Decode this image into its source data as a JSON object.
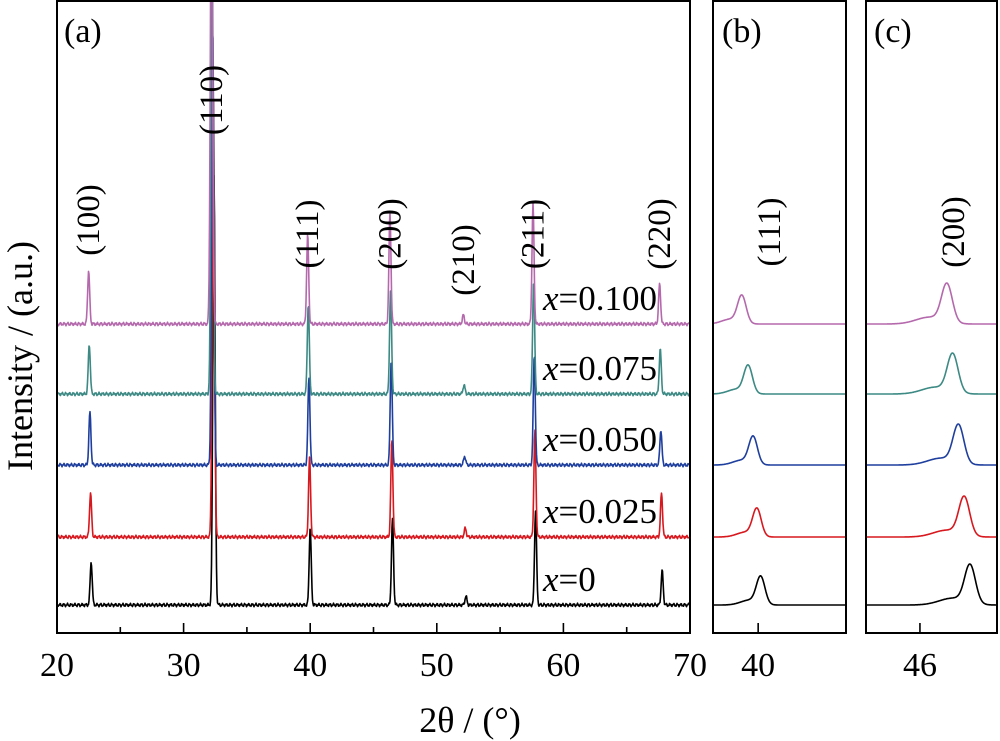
{
  "chart_data": [
    {
      "type": "line",
      "panel": "(a)",
      "xlabel": "2θ / (°)",
      "ylabel": "Intensity / (a.u.)",
      "xlim": [
        20,
        70
      ],
      "xticks": [
        "20",
        "30",
        "40",
        "50",
        "60",
        "70"
      ],
      "peaks": [
        {
          "hkl": "(100)",
          "x": 22.7,
          "heights": [
            10,
            10,
            12,
            11,
            12
          ]
        },
        {
          "hkl": "(110)",
          "x": 32.4,
          "heights": [
            100,
            100,
            100,
            100,
            100
          ]
        },
        {
          "hkl": "(111)",
          "x": 40.0,
          "heights": [
            18,
            18,
            20,
            20,
            20
          ]
        },
        {
          "hkl": "(200)",
          "x": 46.5,
          "heights": [
            20,
            22,
            24,
            23,
            25
          ]
        },
        {
          "hkl": "(210)",
          "x": 52.3,
          "heights": [
            2,
            2,
            2,
            2,
            2
          ]
        },
        {
          "hkl": "(211)",
          "x": 57.8,
          "heights": [
            22,
            24,
            25,
            25,
            27
          ]
        },
        {
          "hkl": "(220)",
          "x": 67.8,
          "heights": [
            8,
            10,
            8,
            10,
            9
          ]
        }
      ],
      "series": [
        {
          "name": "x=0",
          "var": "x",
          "eq": "=0",
          "color": "#000000",
          "shift": 0
        },
        {
          "name": "x=0.025",
          "var": "x",
          "eq": "=0.025",
          "color": "#d7191f",
          "shift": -0.05
        },
        {
          "name": "x=0.050",
          "var": "x",
          "eq": "=0.050",
          "color": "#1f3f9e",
          "shift": -0.1
        },
        {
          "name": "x=0.075",
          "var": "x",
          "eq": "=0.075",
          "color": "#3d8a85",
          "shift": -0.15
        },
        {
          "name": "x=0.100",
          "var": "x",
          "eq": "=0.100",
          "color": "#b569ad",
          "shift": -0.2
        }
      ]
    },
    {
      "type": "line",
      "panel": "(b)",
      "hkl": "(111)",
      "xlim": [
        38.2,
        43.5
      ],
      "xticks": [
        "40"
      ],
      "peak_positions": [
        40.1,
        39.95,
        39.8,
        39.6,
        39.35
      ]
    },
    {
      "type": "line",
      "panel": "(c)",
      "hkl": "(200)",
      "xlim": [
        44.6,
        48.0
      ],
      "xticks": [
        "46"
      ],
      "peak_positions": [
        47.3,
        47.15,
        47.0,
        46.85,
        46.7
      ]
    }
  ]
}
